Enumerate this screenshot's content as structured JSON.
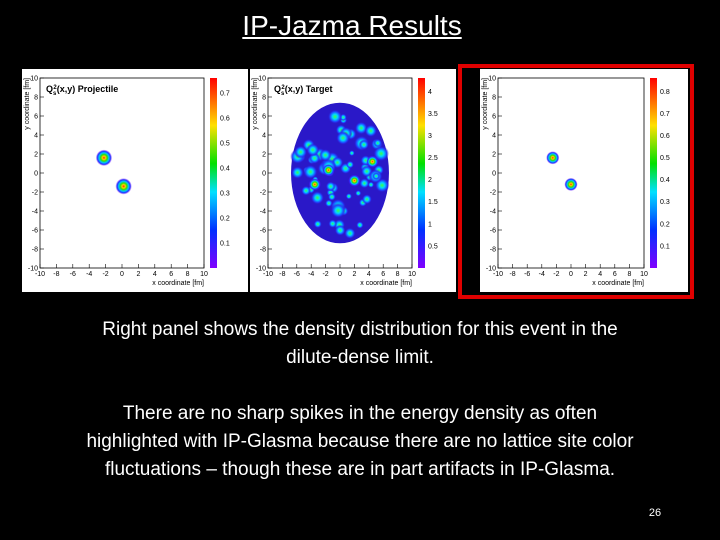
{
  "title": "IP-Jazma Results",
  "panels": [
    {
      "title": {
        "symbol": "Q",
        "sub": "s",
        "sup": "2",
        "text": "(x,y) Projectile"
      },
      "x_label": "x coordinate [fm]",
      "y_label": "y coordinate [fm]",
      "x_ticks": [
        "-10",
        "-8",
        "-6",
        "-4",
        "-2",
        "0",
        "2",
        "4",
        "6",
        "8",
        "10"
      ],
      "y_ticks": [
        "-10",
        "-8",
        "-6",
        "-4",
        "-2",
        "0",
        "2",
        "4",
        "6",
        "8",
        "10"
      ],
      "colorbar_ticks": [
        "0.1",
        "0.2",
        "0.3",
        "0.4",
        "0.5",
        "0.6",
        "0.7"
      ]
    },
    {
      "title": {
        "symbol": "Q",
        "sub": "s",
        "sup": "2",
        "text": "(x,y) Target"
      },
      "x_label": "x coordinate [fm]",
      "y_label": "y coordinate [fm]",
      "x_ticks": [
        "-10",
        "-8",
        "-6",
        "-4",
        "-2",
        "0",
        "2",
        "4",
        "6",
        "8",
        "10"
      ],
      "y_ticks": [
        "-10",
        "-8",
        "-6",
        "-4",
        "-2",
        "0",
        "2",
        "4",
        "6",
        "8",
        "10"
      ],
      "colorbar_ticks": [
        "0.5",
        "1",
        "1.5",
        "2",
        "2.5",
        "3",
        "3.5",
        "4"
      ]
    },
    {
      "x_label": "x coordinate [fm]",
      "y_label": "y coordinate [fm]",
      "x_ticks": [
        "-10",
        "-8",
        "-6",
        "-4",
        "-2",
        "0",
        "2",
        "4",
        "6",
        "8",
        "10"
      ],
      "y_ticks": [
        "-10",
        "-8",
        "-6",
        "-4",
        "-2",
        "0",
        "2",
        "4",
        "6",
        "8",
        "10"
      ],
      "colorbar_ticks": [
        "0.1",
        "0.2",
        "0.3",
        "0.4",
        "0.5",
        "0.6",
        "0.7",
        "0.8"
      ]
    }
  ],
  "paragraphs": [
    [
      "Right panel shows the density distribution for this event in the",
      "dilute-dense limit."
    ],
    [
      "There are no sharp spikes in the energy density as often",
      "highlighted with IP-Glasma because there are no lattice site color",
      "fluctuations – though these are in part artifacts in IP-Glasma."
    ]
  ],
  "page_number": "26"
}
